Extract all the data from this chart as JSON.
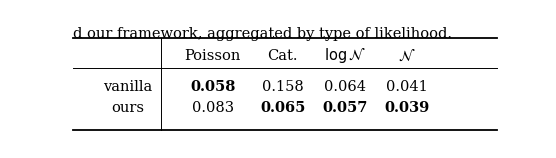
{
  "caption": "d our framework, aggregated by type of likelihood.",
  "col_headers_text": [
    "Poisson",
    "Cat.",
    "$\\log\\mathcal{N}$",
    "$\\mathcal{N}$"
  ],
  "rows": [
    {
      "label": "vanilla",
      "values": [
        "0.058",
        "0.158",
        "0.064",
        "0.041"
      ],
      "bold": [
        true,
        false,
        false,
        false
      ]
    },
    {
      "label": "ours",
      "values": [
        "0.083",
        "0.065",
        "0.057",
        "0.039"
      ],
      "bold": [
        false,
        true,
        true,
        true
      ]
    }
  ],
  "figsize": [
    5.56,
    1.58
  ],
  "dpi": 100,
  "font_size": 10.5,
  "caption_font_size": 10.5,
  "lw_thick": 1.3,
  "lw_thin": 0.7
}
